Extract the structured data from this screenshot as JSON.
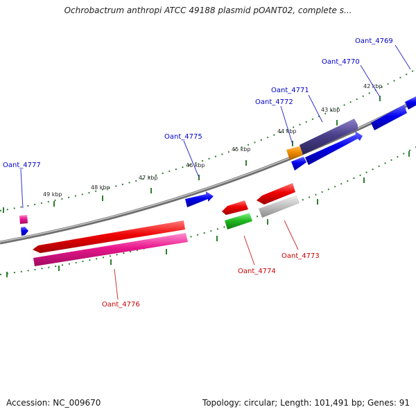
{
  "title": "Ochrobactrum anthropi ATCC 49188 plasmid pOANT02, complete s...",
  "accession": "Accession: NC_009670",
  "summary": "Topology: circular; Length: 101,491 bp; Genes: 91",
  "ruler_labels": [
    "49 kbp",
    "48 kbp",
    "47 kbp",
    "46 kbp",
    "45 kbp",
    "44 kbp",
    "43 kbp",
    "42 kbp"
  ],
  "genes_top": [
    "Oant_4777",
    "Oant_4775",
    "Oant_4772",
    "Oant_4771",
    "Oant_4770",
    "Oant_4769"
  ],
  "genes_bottom": [
    "Oant_4776",
    "Oant_4774",
    "Oant_4773"
  ],
  "colors": {
    "label_top": "#0000cc",
    "label_bottom": "#cc0000",
    "backbone": "#808080",
    "ruler": "#2e7d2e",
    "blue": "#0000ee",
    "red": "#ee0000",
    "pink": "#e8168c",
    "green": "#22bb22",
    "gray": "#b8b8b8",
    "purple": "#4a3f8a",
    "orange": "#f08c00"
  }
}
